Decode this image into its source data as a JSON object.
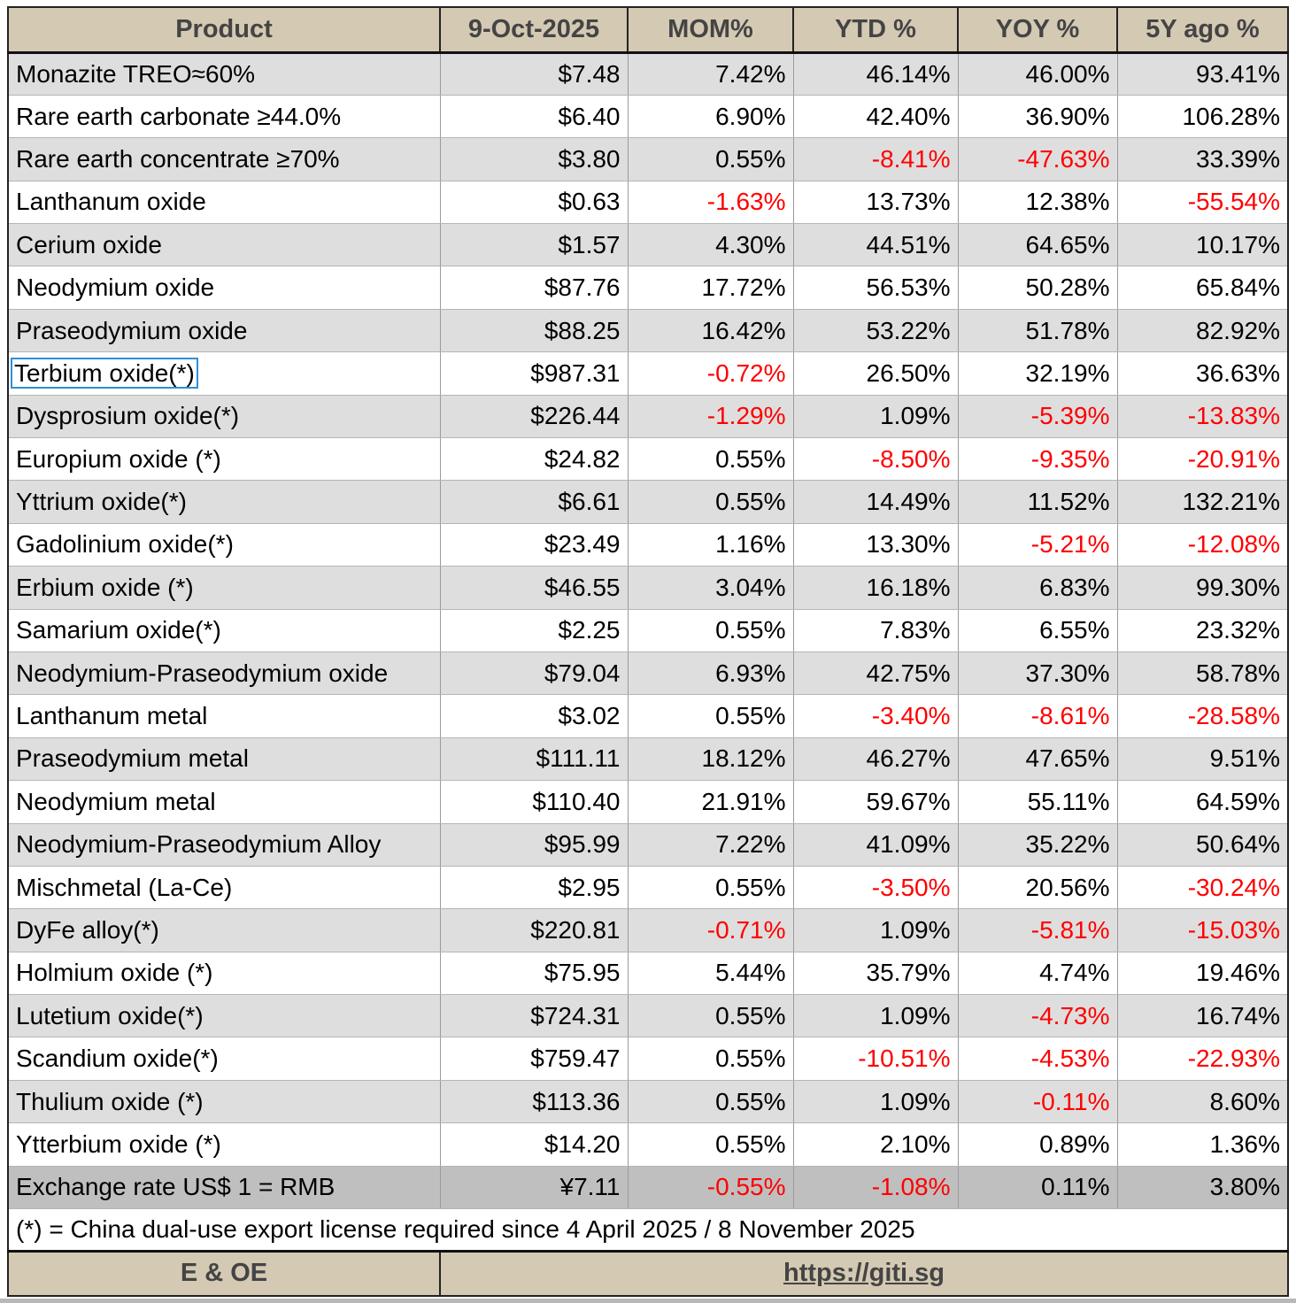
{
  "header": {
    "product": "Product",
    "date": "9-Oct-2025",
    "mom": "MOM%",
    "ytd": "YTD %",
    "yoy": "YOY %",
    "five_y": "5Y ago %"
  },
  "rows": [
    {
      "product": "Monazite TREO≈60%",
      "price": "$7.48",
      "mom": "7.42%",
      "ytd": "46.14%",
      "yoy": "46.00%",
      "five_y": "93.41%"
    },
    {
      "product": "Rare earth carbonate  ≥44.0%",
      "price": "$6.40",
      "mom": "6.90%",
      "ytd": "42.40%",
      "yoy": "36.90%",
      "five_y": "106.28%"
    },
    {
      "product": "Rare earth concentrate ≥70%",
      "price": "$3.80",
      "mom": "0.55%",
      "ytd": "-8.41%",
      "yoy": "-47.63%",
      "five_y": "33.39%"
    },
    {
      "product": "Lanthanum oxide",
      "price": "$0.63",
      "mom": "-1.63%",
      "ytd": "13.73%",
      "yoy": "12.38%",
      "five_y": "-55.54%"
    },
    {
      "product": "Cerium oxide",
      "price": "$1.57",
      "mom": "4.30%",
      "ytd": "44.51%",
      "yoy": "64.65%",
      "five_y": "10.17%"
    },
    {
      "product": "Neodymium oxide",
      "price": "$87.76",
      "mom": "17.72%",
      "ytd": "56.53%",
      "yoy": "50.28%",
      "five_y": "65.84%"
    },
    {
      "product": "Praseodymium oxide",
      "price": "$88.25",
      "mom": "16.42%",
      "ytd": "53.22%",
      "yoy": "51.78%",
      "five_y": "82.92%"
    },
    {
      "product": "Terbium oxide(*)",
      "price": "$987.31",
      "mom": "-0.72%",
      "ytd": "26.50%",
      "yoy": "32.19%",
      "five_y": "36.63%"
    },
    {
      "product": "Dysprosium oxide(*)",
      "price": "$226.44",
      "mom": "-1.29%",
      "ytd": "1.09%",
      "yoy": "-5.39%",
      "five_y": "-13.83%"
    },
    {
      "product": "Europium oxide (*)",
      "price": "$24.82",
      "mom": "0.55%",
      "ytd": "-8.50%",
      "yoy": "-9.35%",
      "five_y": "-20.91%"
    },
    {
      "product": "Yttrium oxide(*)",
      "price": "$6.61",
      "mom": "0.55%",
      "ytd": "14.49%",
      "yoy": "11.52%",
      "five_y": "132.21%"
    },
    {
      "product": "Gadolinium oxide(*)",
      "price": "$23.49",
      "mom": "1.16%",
      "ytd": "13.30%",
      "yoy": "-5.21%",
      "five_y": "-12.08%"
    },
    {
      "product": "Erbium oxide (*)",
      "price": "$46.55",
      "mom": "3.04%",
      "ytd": "16.18%",
      "yoy": "6.83%",
      "five_y": "99.30%"
    },
    {
      "product": "Samarium oxide(*)",
      "price": "$2.25",
      "mom": "0.55%",
      "ytd": "7.83%",
      "yoy": "6.55%",
      "five_y": "23.32%"
    },
    {
      "product": "Neodymium-Praseodymium oxide",
      "price": "$79.04",
      "mom": "6.93%",
      "ytd": "42.75%",
      "yoy": "37.30%",
      "five_y": "58.78%"
    },
    {
      "product": "Lanthanum metal",
      "price": "$3.02",
      "mom": "0.55%",
      "ytd": "-3.40%",
      "yoy": "-8.61%",
      "five_y": "-28.58%"
    },
    {
      "product": "Praseodymium metal",
      "price": "$111.11",
      "mom": "18.12%",
      "ytd": "46.27%",
      "yoy": "47.65%",
      "five_y": "9.51%"
    },
    {
      "product": "Neodymium metal",
      "price": "$110.40",
      "mom": "21.91%",
      "ytd": "59.67%",
      "yoy": "55.11%",
      "five_y": "64.59%"
    },
    {
      "product": "Neodymium-Praseodymium Alloy",
      "price": "$95.99",
      "mom": "7.22%",
      "ytd": "41.09%",
      "yoy": "35.22%",
      "five_y": "50.64%"
    },
    {
      "product": "Mischmetal (La-Ce)",
      "price": "$2.95",
      "mom": "0.55%",
      "ytd": "-3.50%",
      "yoy": "20.56%",
      "five_y": "-30.24%"
    },
    {
      "product": "DyFe alloy(*)",
      "price": "$220.81",
      "mom": "-0.71%",
      "ytd": "1.09%",
      "yoy": "-5.81%",
      "five_y": "-15.03%"
    },
    {
      "product": "Holmium oxide (*)",
      "price": "$75.95",
      "mom": "5.44%",
      "ytd": "35.79%",
      "yoy": "4.74%",
      "five_y": "19.46%"
    },
    {
      "product": "Lutetium oxide(*)",
      "price": "$724.31",
      "mom": "0.55%",
      "ytd": "1.09%",
      "yoy": "-4.73%",
      "five_y": "16.74%"
    },
    {
      "product": "Scandium oxide(*)",
      "price": "$759.47",
      "mom": "0.55%",
      "ytd": "-10.51%",
      "yoy": "-4.53%",
      "five_y": "-22.93%"
    },
    {
      "product": "Thulium oxide (*)",
      "price": "$113.36",
      "mom": "0.55%",
      "ytd": "1.09%",
      "yoy": "-0.11%",
      "five_y": "8.60%"
    },
    {
      "product": "Ytterbium oxide (*)",
      "price": "$14.20",
      "mom": "0.55%",
      "ytd": "2.10%",
      "yoy": "0.89%",
      "five_y": "1.36%"
    },
    {
      "product": "Exchange rate US$ 1 = RMB",
      "price": "¥7.11",
      "mom": "-0.55%",
      "ytd": "-1.08%",
      "yoy": "0.11%",
      "five_y": "3.80%"
    }
  ],
  "note": "(*) = China dual-use export license required since 4 April 2025 / 8 November 2025",
  "footer": {
    "disclaimer": "E & OE",
    "link": "https://giti.sg"
  },
  "colors": {
    "header_bg": "#d4c9b3",
    "shaded_row": "#dedede",
    "exchange_row": "#bfbfbf",
    "negative": "#ff0000",
    "selection": "#2f8fd8"
  }
}
